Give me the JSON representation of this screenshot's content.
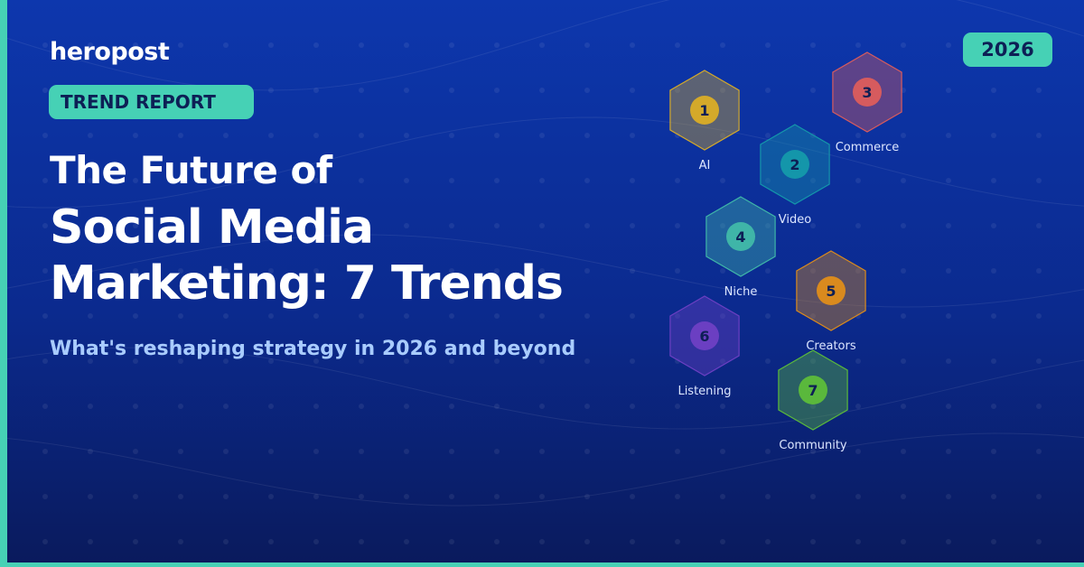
{
  "brand": "heropost",
  "badge": "TREND REPORT",
  "year": "2026",
  "title_line1": "The Future of",
  "title_line2": "Social Media",
  "title_line3": "Marketing: 7 Trends",
  "subtitle": "What's reshaping strategy in 2026 and beyond",
  "trends": [
    {
      "num": "1",
      "label": "AI",
      "color": "#d4a92a"
    },
    {
      "num": "2",
      "label": "Video",
      "color": "#1496aa"
    },
    {
      "num": "3",
      "label": "Commerce",
      "color": "#d65b5e"
    },
    {
      "num": "4",
      "label": "Niche",
      "color": "#3fb5a8"
    },
    {
      "num": "5",
      "label": "Creators",
      "color": "#d98a1e"
    },
    {
      "num": "6",
      "label": "Listening",
      "color": "#6b3fc2"
    },
    {
      "num": "7",
      "label": "Community",
      "color": "#5ab83c"
    }
  ]
}
